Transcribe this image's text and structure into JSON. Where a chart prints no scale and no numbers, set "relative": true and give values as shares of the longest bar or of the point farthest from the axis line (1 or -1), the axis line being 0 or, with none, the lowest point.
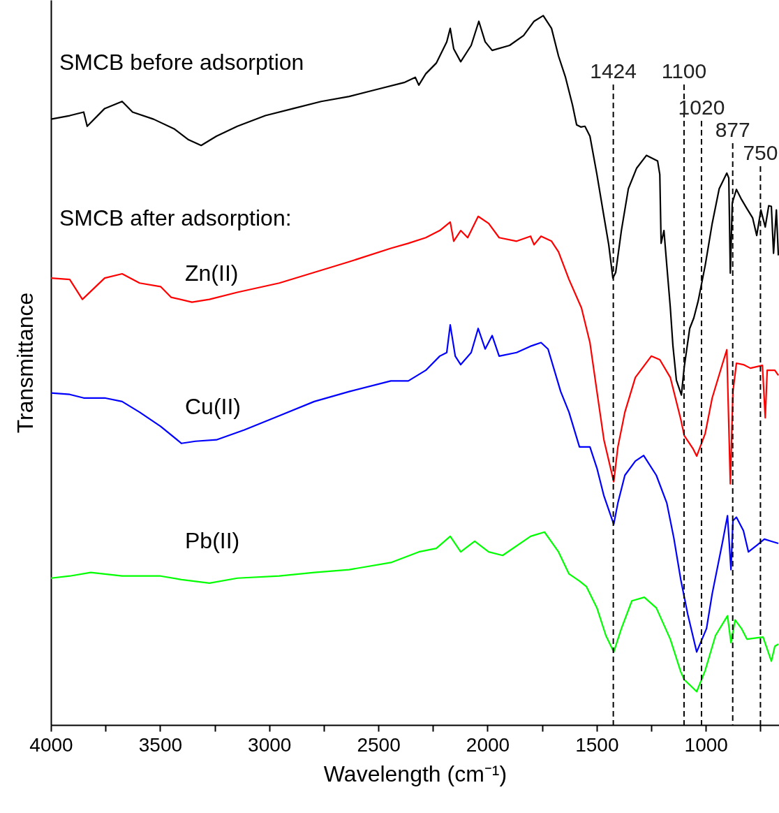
{
  "chart_data": {
    "type": "line",
    "xlabel": "Wavelength (cm⁻¹)",
    "ylabel": "Transmittance",
    "relative": true,
    "xlim": [
      4000,
      665
    ],
    "xticks": [
      4000,
      {
        "value": 3750,
        "label": null
      },
      3500,
      {
        "value": 3250,
        "label": null
      },
      3000,
      {
        "value": 2750,
        "label": null
      },
      2500,
      {
        "value": 2250,
        "label": null
      },
      2000,
      {
        "value": 1750,
        "label": null
      },
      1500,
      {
        "value": 1250,
        "label": null
      },
      1000,
      {
        "value": 750,
        "label": null
      }
    ],
    "grid": false,
    "line_style": "solid",
    "marker": "none",
    "annotations": [
      "SMCB after adsorption:"
    ],
    "ref_lines": [
      {
        "axis": "x",
        "value": 1424,
        "label": "1424",
        "color": "#000000",
        "line_style": "dashed"
      },
      {
        "axis": "x",
        "value": 1100,
        "label": "1100",
        "color": "#000000",
        "line_style": "dashed"
      },
      {
        "axis": "x",
        "value": 1020,
        "label": "1020",
        "color": "#000000",
        "line_style": "dashed"
      },
      {
        "axis": "x",
        "value": 877,
        "label": "877",
        "color": "#000000",
        "line_style": "dashed"
      },
      {
        "axis": "x",
        "value": 750,
        "label": "750",
        "color": "#000000",
        "line_style": "dashed"
      }
    ],
    "series": [
      {
        "name": "SMCB before adsorption",
        "color": "#000000",
        "x": [
          4000,
          3914,
          3850,
          3834,
          3754,
          3674,
          3626,
          3530,
          3434,
          3370,
          3312,
          3242,
          3146,
          3018,
          2890,
          2762,
          2634,
          2507,
          2379,
          2331,
          2315,
          2283,
          2235,
          2187,
          2171,
          2155,
          2123,
          2075,
          2040,
          2011,
          1979,
          1899,
          1835,
          1787,
          1745,
          1707,
          1675,
          1643,
          1611,
          1592,
          1573,
          1554,
          1531,
          1499,
          1467,
          1445,
          1426,
          1413,
          1387,
          1355,
          1317,
          1272,
          1221,
          1211,
          1205,
          1192,
          1179,
          1163,
          1151,
          1135,
          1112,
          1099,
          1074,
          1055,
          1035,
          1003,
          971,
          939,
          904,
          895,
          888,
          879,
          860,
          837,
          812,
          786,
          767,
          748,
          728,
          712,
          700,
          690,
          677,
          668
        ],
        "values": [
          0.854,
          0.859,
          0.864,
          0.844,
          0.869,
          0.879,
          0.864,
          0.854,
          0.84,
          0.825,
          0.817,
          0.83,
          0.844,
          0.859,
          0.869,
          0.879,
          0.886,
          0.896,
          0.906,
          0.913,
          0.902,
          0.918,
          0.933,
          0.963,
          0.982,
          0.953,
          0.935,
          0.958,
          0.992,
          0.963,
          0.951,
          0.958,
          0.972,
          0.992,
          1.0,
          0.982,
          0.943,
          0.913,
          0.874,
          0.846,
          0.843,
          0.844,
          0.83,
          0.776,
          0.717,
          0.677,
          0.63,
          0.638,
          0.697,
          0.756,
          0.785,
          0.803,
          0.795,
          0.776,
          0.679,
          0.697,
          0.648,
          0.589,
          0.535,
          0.486,
          0.465,
          0.505,
          0.559,
          0.574,
          0.598,
          0.648,
          0.707,
          0.756,
          0.778,
          0.771,
          0.637,
          0.736,
          0.755,
          0.741,
          0.728,
          0.715,
          0.69,
          0.726,
          0.702,
          0.732,
          0.731,
          0.665,
          0.726,
          0.662
        ]
      },
      {
        "name": "Zn(II)",
        "color": "#ff0000",
        "x": [
          4000,
          3914,
          3856,
          3754,
          3674,
          3594,
          3498,
          3450,
          3354,
          3274,
          3146,
          2954,
          2794,
          2634,
          2443,
          2363,
          2283,
          2219,
          2171,
          2155,
          2123,
          2091,
          2043,
          1995,
          1947,
          1867,
          1803,
          1787,
          1755,
          1707,
          1675,
          1627,
          1570,
          1531,
          1499,
          1467,
          1422,
          1403,
          1371,
          1323,
          1250,
          1211,
          1163,
          1115,
          1099,
          1058,
          1042,
          1003,
          971,
          923,
          904,
          888,
          876,
          860,
          828,
          796,
          741,
          728,
          719,
          684,
          668
        ],
        "values": [
          0.63,
          0.628,
          0.6,
          0.63,
          0.636,
          0.623,
          0.618,
          0.603,
          0.596,
          0.6,
          0.61,
          0.623,
          0.638,
          0.653,
          0.672,
          0.679,
          0.687,
          0.697,
          0.709,
          0.682,
          0.697,
          0.687,
          0.717,
          0.707,
          0.687,
          0.682,
          0.689,
          0.677,
          0.689,
          0.682,
          0.667,
          0.628,
          0.588,
          0.539,
          0.47,
          0.402,
          0.343,
          0.392,
          0.441,
          0.49,
          0.52,
          0.515,
          0.49,
          0.431,
          0.408,
          0.389,
          0.379,
          0.411,
          0.461,
          0.51,
          0.529,
          0.34,
          0.47,
          0.51,
          0.508,
          0.503,
          0.507,
          0.433,
          0.5,
          0.5,
          0.493
        ]
      },
      {
        "name": "Cu(II)",
        "color": "#0000ff",
        "x": [
          4000,
          3914,
          3850,
          3754,
          3674,
          3594,
          3498,
          3402,
          3338,
          3242,
          3114,
          2954,
          2794,
          2634,
          2443,
          2363,
          2283,
          2219,
          2187,
          2171,
          2148,
          2123,
          2075,
          2043,
          2011,
          1979,
          1947,
          1867,
          1803,
          1755,
          1723,
          1665,
          1627,
          1579,
          1531,
          1499,
          1467,
          1422,
          1403,
          1371,
          1323,
          1285,
          1227,
          1179,
          1147,
          1115,
          1083,
          1042,
          997,
          971,
          923,
          901,
          885,
          876,
          860,
          828,
          805,
          764,
          732,
          700,
          668
        ],
        "values": [
          0.468,
          0.466,
          0.461,
          0.461,
          0.456,
          0.441,
          0.421,
          0.397,
          0.4,
          0.402,
          0.416,
          0.436,
          0.456,
          0.47,
          0.485,
          0.485,
          0.5,
          0.52,
          0.525,
          0.564,
          0.52,
          0.508,
          0.525,
          0.559,
          0.53,
          0.549,
          0.52,
          0.525,
          0.534,
          0.539,
          0.53,
          0.47,
          0.441,
          0.392,
          0.392,
          0.362,
          0.323,
          0.283,
          0.313,
          0.352,
          0.372,
          0.38,
          0.352,
          0.313,
          0.264,
          0.205,
          0.156,
          0.103,
          0.136,
          0.185,
          0.259,
          0.295,
          0.219,
          0.288,
          0.293,
          0.274,
          0.244,
          0.254,
          0.262,
          0.259,
          0.256
        ]
      },
      {
        "name": "Pb(II)",
        "color": "#00ff00",
        "x": [
          4000,
          3914,
          3818,
          3674,
          3498,
          3402,
          3274,
          3146,
          2954,
          2794,
          2634,
          2443,
          2315,
          2235,
          2171,
          2123,
          2059,
          1995,
          1931,
          1803,
          1739,
          1675,
          1627,
          1579,
          1547,
          1499,
          1458,
          1422,
          1387,
          1339,
          1282,
          1227,
          1163,
          1115,
          1099,
          1042,
          1003,
          956,
          901,
          885,
          866,
          837,
          812,
          764,
          738,
          700,
          684,
          668
        ],
        "values": [
          0.207,
          0.21,
          0.215,
          0.21,
          0.21,
          0.205,
          0.2,
          0.207,
          0.21,
          0.215,
          0.219,
          0.229,
          0.244,
          0.249,
          0.266,
          0.244,
          0.259,
          0.244,
          0.239,
          0.266,
          0.272,
          0.244,
          0.213,
          0.203,
          0.195,
          0.165,
          0.126,
          0.103,
          0.136,
          0.175,
          0.18,
          0.165,
          0.121,
          0.075,
          0.064,
          0.047,
          0.077,
          0.126,
          0.154,
          0.116,
          0.148,
          0.136,
          0.121,
          0.123,
          0.124,
          0.09,
          0.111,
          0.114
        ]
      }
    ]
  }
}
